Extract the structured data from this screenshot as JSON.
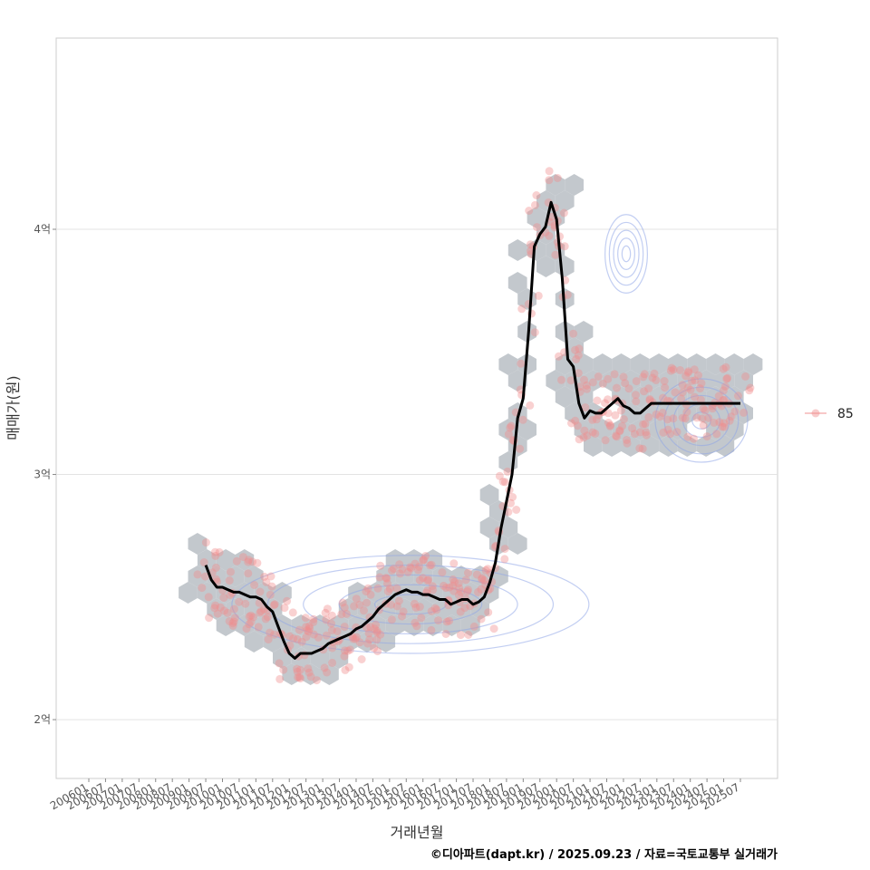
{
  "chart_data": {
    "type": "line",
    "title": "",
    "xlabel": "거래년월",
    "ylabel": "매매가(원)",
    "y_unit": "억원",
    "ylim": [
      1.76,
      4.78
    ],
    "y_ticks": [
      {
        "value": 2,
        "label": "2억"
      },
      {
        "value": 3,
        "label": "3억"
      },
      {
        "value": 4,
        "label": "4억"
      }
    ],
    "x_tick_labels": [
      "200601",
      "200607",
      "200701",
      "200707",
      "200801",
      "200807",
      "200901",
      "200907",
      "201001",
      "201007",
      "201101",
      "201107",
      "201201",
      "201207",
      "201301",
      "201307",
      "201401",
      "201407",
      "201501",
      "201507",
      "201601",
      "201607",
      "201701",
      "201707",
      "201801",
      "201807",
      "201901",
      "201907",
      "202001",
      "202007",
      "202101",
      "202107",
      "202201",
      "202207",
      "202301",
      "202307",
      "202401",
      "202407",
      "202501",
      "202507"
    ],
    "x_start": "2006-01",
    "x_end": "2025-07",
    "grid": "horizontal",
    "legend": {
      "position": "right",
      "entries": [
        {
          "label": "85",
          "color": "#f08c8c"
        }
      ]
    },
    "caption": "©디아파트(dapt.kr) / 2025.09.23 / 자료=국토교통부 실거래가",
    "colors": {
      "trend": "#000000",
      "points": "#f08c8c",
      "hexbin": "#c3c8cd",
      "contour": "#8fa6e8"
    },
    "series": [
      {
        "name": "85",
        "x": [
          "2009-07",
          "2009-09",
          "2009-11",
          "2010-01",
          "2010-03",
          "2010-05",
          "2010-07",
          "2010-09",
          "2010-11",
          "2011-01",
          "2011-03",
          "2011-05",
          "2011-07",
          "2011-09",
          "2011-11",
          "2012-01",
          "2012-03",
          "2012-05",
          "2012-07",
          "2012-09",
          "2012-11",
          "2013-01",
          "2013-03",
          "2013-05",
          "2013-07",
          "2013-09",
          "2013-11",
          "2014-01",
          "2014-03",
          "2014-05",
          "2014-07",
          "2014-09",
          "2014-11",
          "2015-01",
          "2015-03",
          "2015-05",
          "2015-07",
          "2015-09",
          "2015-11",
          "2016-01",
          "2016-03",
          "2016-05",
          "2016-07",
          "2016-09",
          "2016-11",
          "2017-01",
          "2017-03",
          "2017-05",
          "2017-07",
          "2017-09",
          "2017-11",
          "2018-01",
          "2018-03",
          "2018-05",
          "2018-07",
          "2018-09",
          "2018-11",
          "2019-01",
          "2019-03",
          "2019-05",
          "2019-07",
          "2019-09",
          "2019-11",
          "2020-01",
          "2020-03",
          "2020-05",
          "2020-07",
          "2020-09",
          "2020-11",
          "2021-01",
          "2021-03",
          "2021-05",
          "2021-07",
          "2021-09",
          "2021-11",
          "2022-01",
          "2022-03",
          "2022-05",
          "2022-07",
          "2022-09",
          "2022-11",
          "2023-01",
          "2023-03",
          "2023-05",
          "2023-07",
          "2023-09",
          "2023-11",
          "2024-01",
          "2024-03",
          "2024-05",
          "2024-07",
          "2024-09",
          "2024-11",
          "2025-01",
          "2025-03",
          "2025-05",
          "2025-07"
        ],
        "y": [
          2.63,
          2.57,
          2.54,
          2.54,
          2.53,
          2.52,
          2.52,
          2.51,
          2.5,
          2.5,
          2.49,
          2.46,
          2.44,
          2.38,
          2.32,
          2.27,
          2.25,
          2.27,
          2.27,
          2.27,
          2.28,
          2.29,
          2.31,
          2.32,
          2.33,
          2.34,
          2.35,
          2.37,
          2.38,
          2.4,
          2.42,
          2.45,
          2.47,
          2.49,
          2.51,
          2.52,
          2.53,
          2.52,
          2.52,
          2.51,
          2.51,
          2.5,
          2.49,
          2.49,
          2.47,
          2.48,
          2.49,
          2.49,
          2.47,
          2.48,
          2.5,
          2.56,
          2.64,
          2.78,
          2.89,
          3.0,
          3.23,
          3.31,
          3.59,
          3.93,
          3.98,
          4.01,
          4.11,
          4.04,
          3.8,
          3.47,
          3.44,
          3.29,
          3.23,
          3.26,
          3.25,
          3.25,
          3.27,
          3.29,
          3.31,
          3.28,
          3.27,
          3.25,
          3.25,
          3.27,
          3.29,
          3.29,
          3.29,
          3.29,
          3.29,
          3.29,
          3.29,
          3.29,
          3.29,
          3.29,
          3.29,
          3.29,
          3.29,
          3.29,
          3.29,
          3.29,
          3.29
        ]
      }
    ]
  }
}
